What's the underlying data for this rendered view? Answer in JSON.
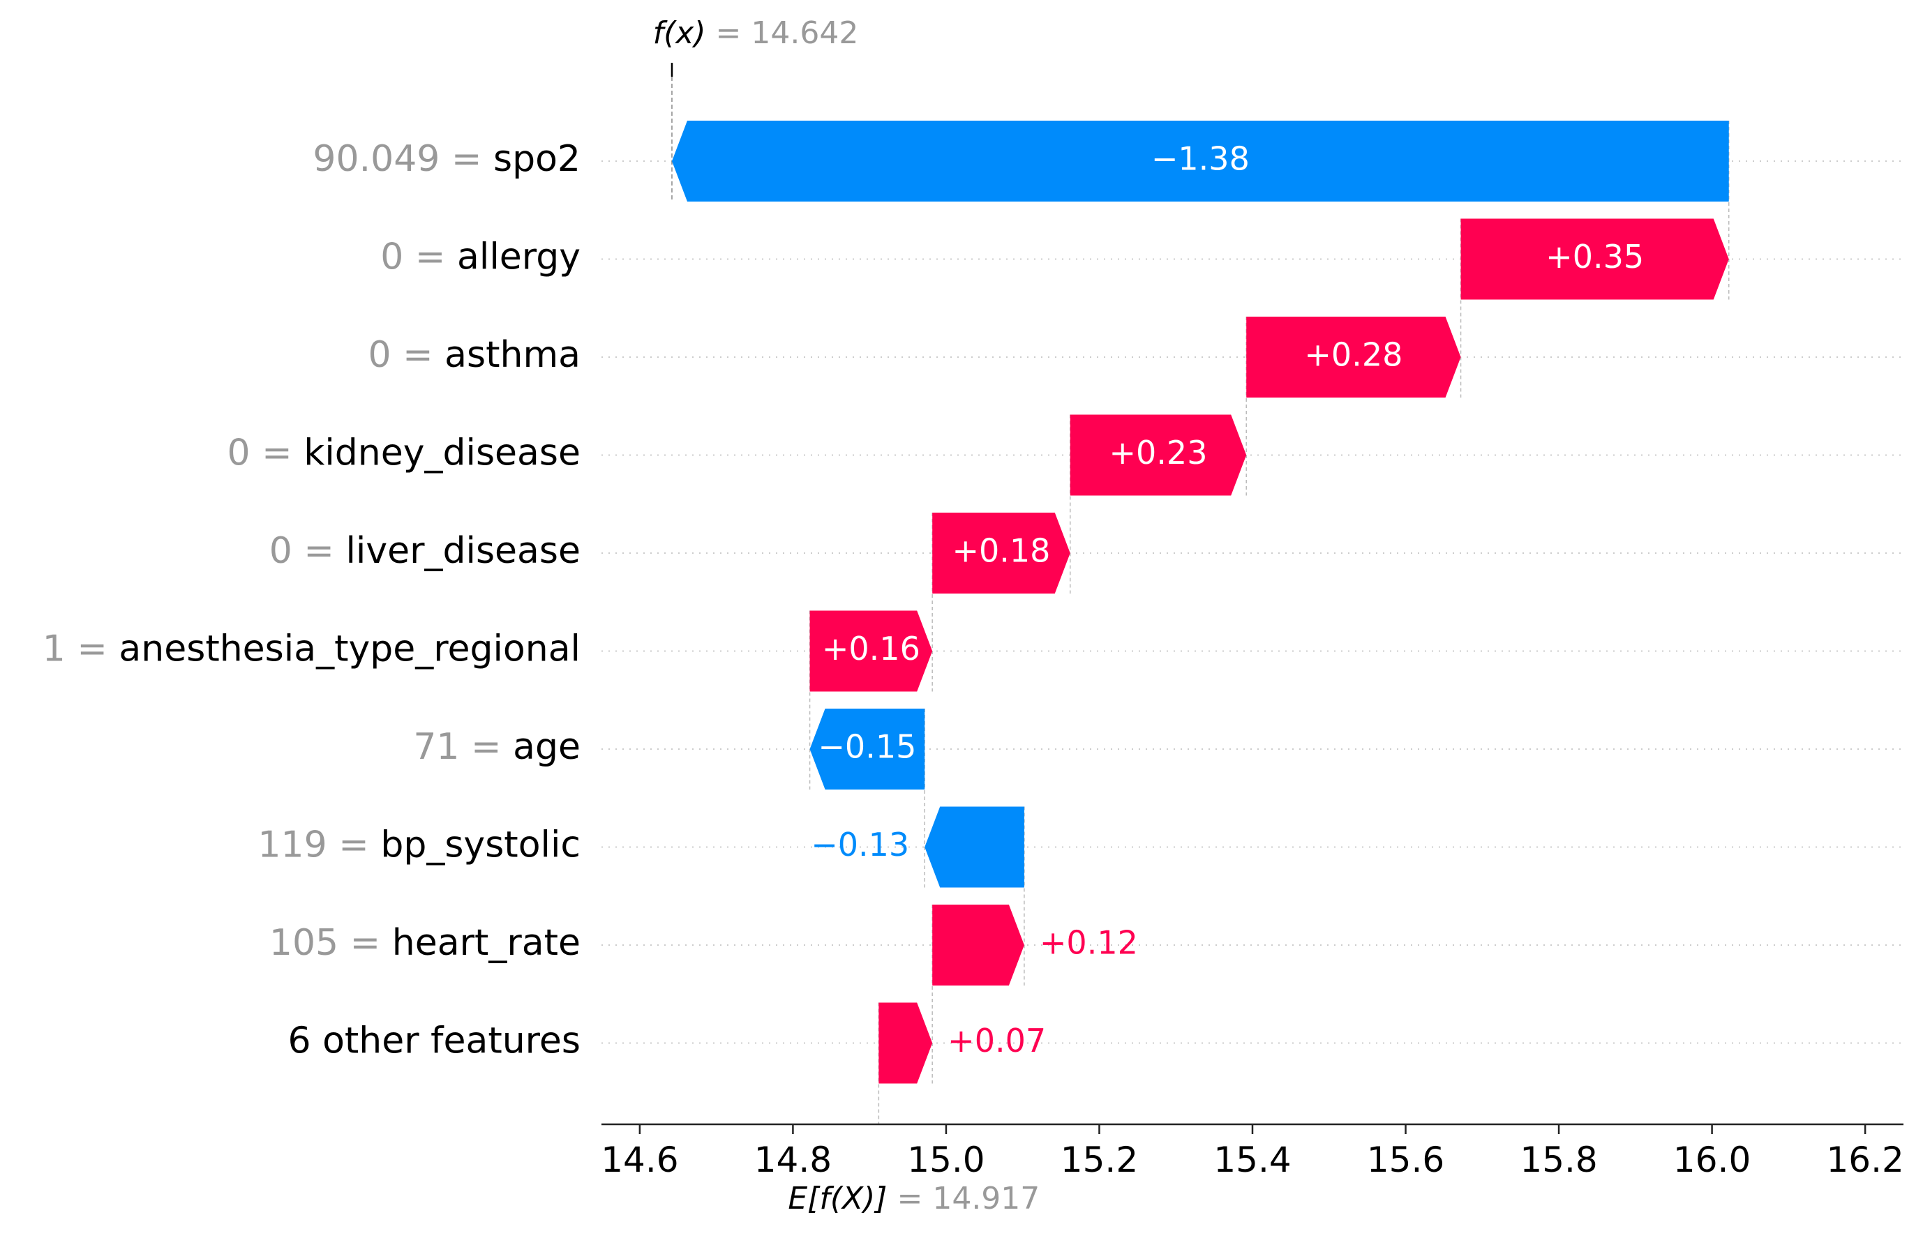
{
  "chart_data": {
    "type": "waterfall",
    "fx_label": "f(x)",
    "fx_value": "14.642",
    "base_label": "E[f(X)]",
    "base_value": "14.917",
    "base_numeric": 14.917,
    "xlim": [
      14.55,
      16.25
    ],
    "x_ticks": [
      {
        "value": 14.6,
        "label": "14.6"
      },
      {
        "value": 14.8,
        "label": "14.8"
      },
      {
        "value": 15.0,
        "label": "15.0"
      },
      {
        "value": 15.2,
        "label": "15.2"
      },
      {
        "value": 15.4,
        "label": "15.4"
      },
      {
        "value": 15.6,
        "label": "15.6"
      },
      {
        "value": 15.8,
        "label": "15.8"
      },
      {
        "value": 16.0,
        "label": "16.0"
      },
      {
        "value": 16.2,
        "label": "16.2"
      }
    ],
    "features": [
      {
        "value": "90.049",
        "name": "spo2",
        "contribution": -1.38,
        "label": "−1.38",
        "start": 16.022,
        "end": 14.642
      },
      {
        "value": "0",
        "name": "allergy",
        "contribution": 0.35,
        "label": "+0.35",
        "start": 15.672,
        "end": 16.022
      },
      {
        "value": "0",
        "name": "asthma",
        "contribution": 0.28,
        "label": "+0.28",
        "start": 15.392,
        "end": 15.672
      },
      {
        "value": "0",
        "name": "kidney_disease",
        "contribution": 0.23,
        "label": "+0.23",
        "start": 15.162,
        "end": 15.392
      },
      {
        "value": "0",
        "name": "liver_disease",
        "contribution": 0.18,
        "label": "+0.18",
        "start": 14.982,
        "end": 15.162
      },
      {
        "value": "1",
        "name": "anesthesia_type_regional",
        "contribution": 0.16,
        "label": "+0.16",
        "start": 14.822,
        "end": 14.982
      },
      {
        "value": "71",
        "name": "age",
        "contribution": -0.15,
        "label": "−0.15",
        "start": 14.972,
        "end": 14.822
      },
      {
        "value": "119",
        "name": "bp_systolic",
        "contribution": -0.13,
        "label": "−0.13",
        "start": 15.102,
        "end": 14.972
      },
      {
        "value": "105",
        "name": "heart_rate",
        "contribution": 0.12,
        "label": "+0.12",
        "start": 14.982,
        "end": 15.102
      },
      {
        "value": "",
        "name": "6 other features",
        "contribution": 0.07,
        "label": "+0.07",
        "start": 14.912,
        "end": 14.982
      }
    ],
    "colors": {
      "positive": "#ff0051",
      "negative": "#008bfb",
      "gray_text": "#999999",
      "text": "#000000"
    }
  }
}
